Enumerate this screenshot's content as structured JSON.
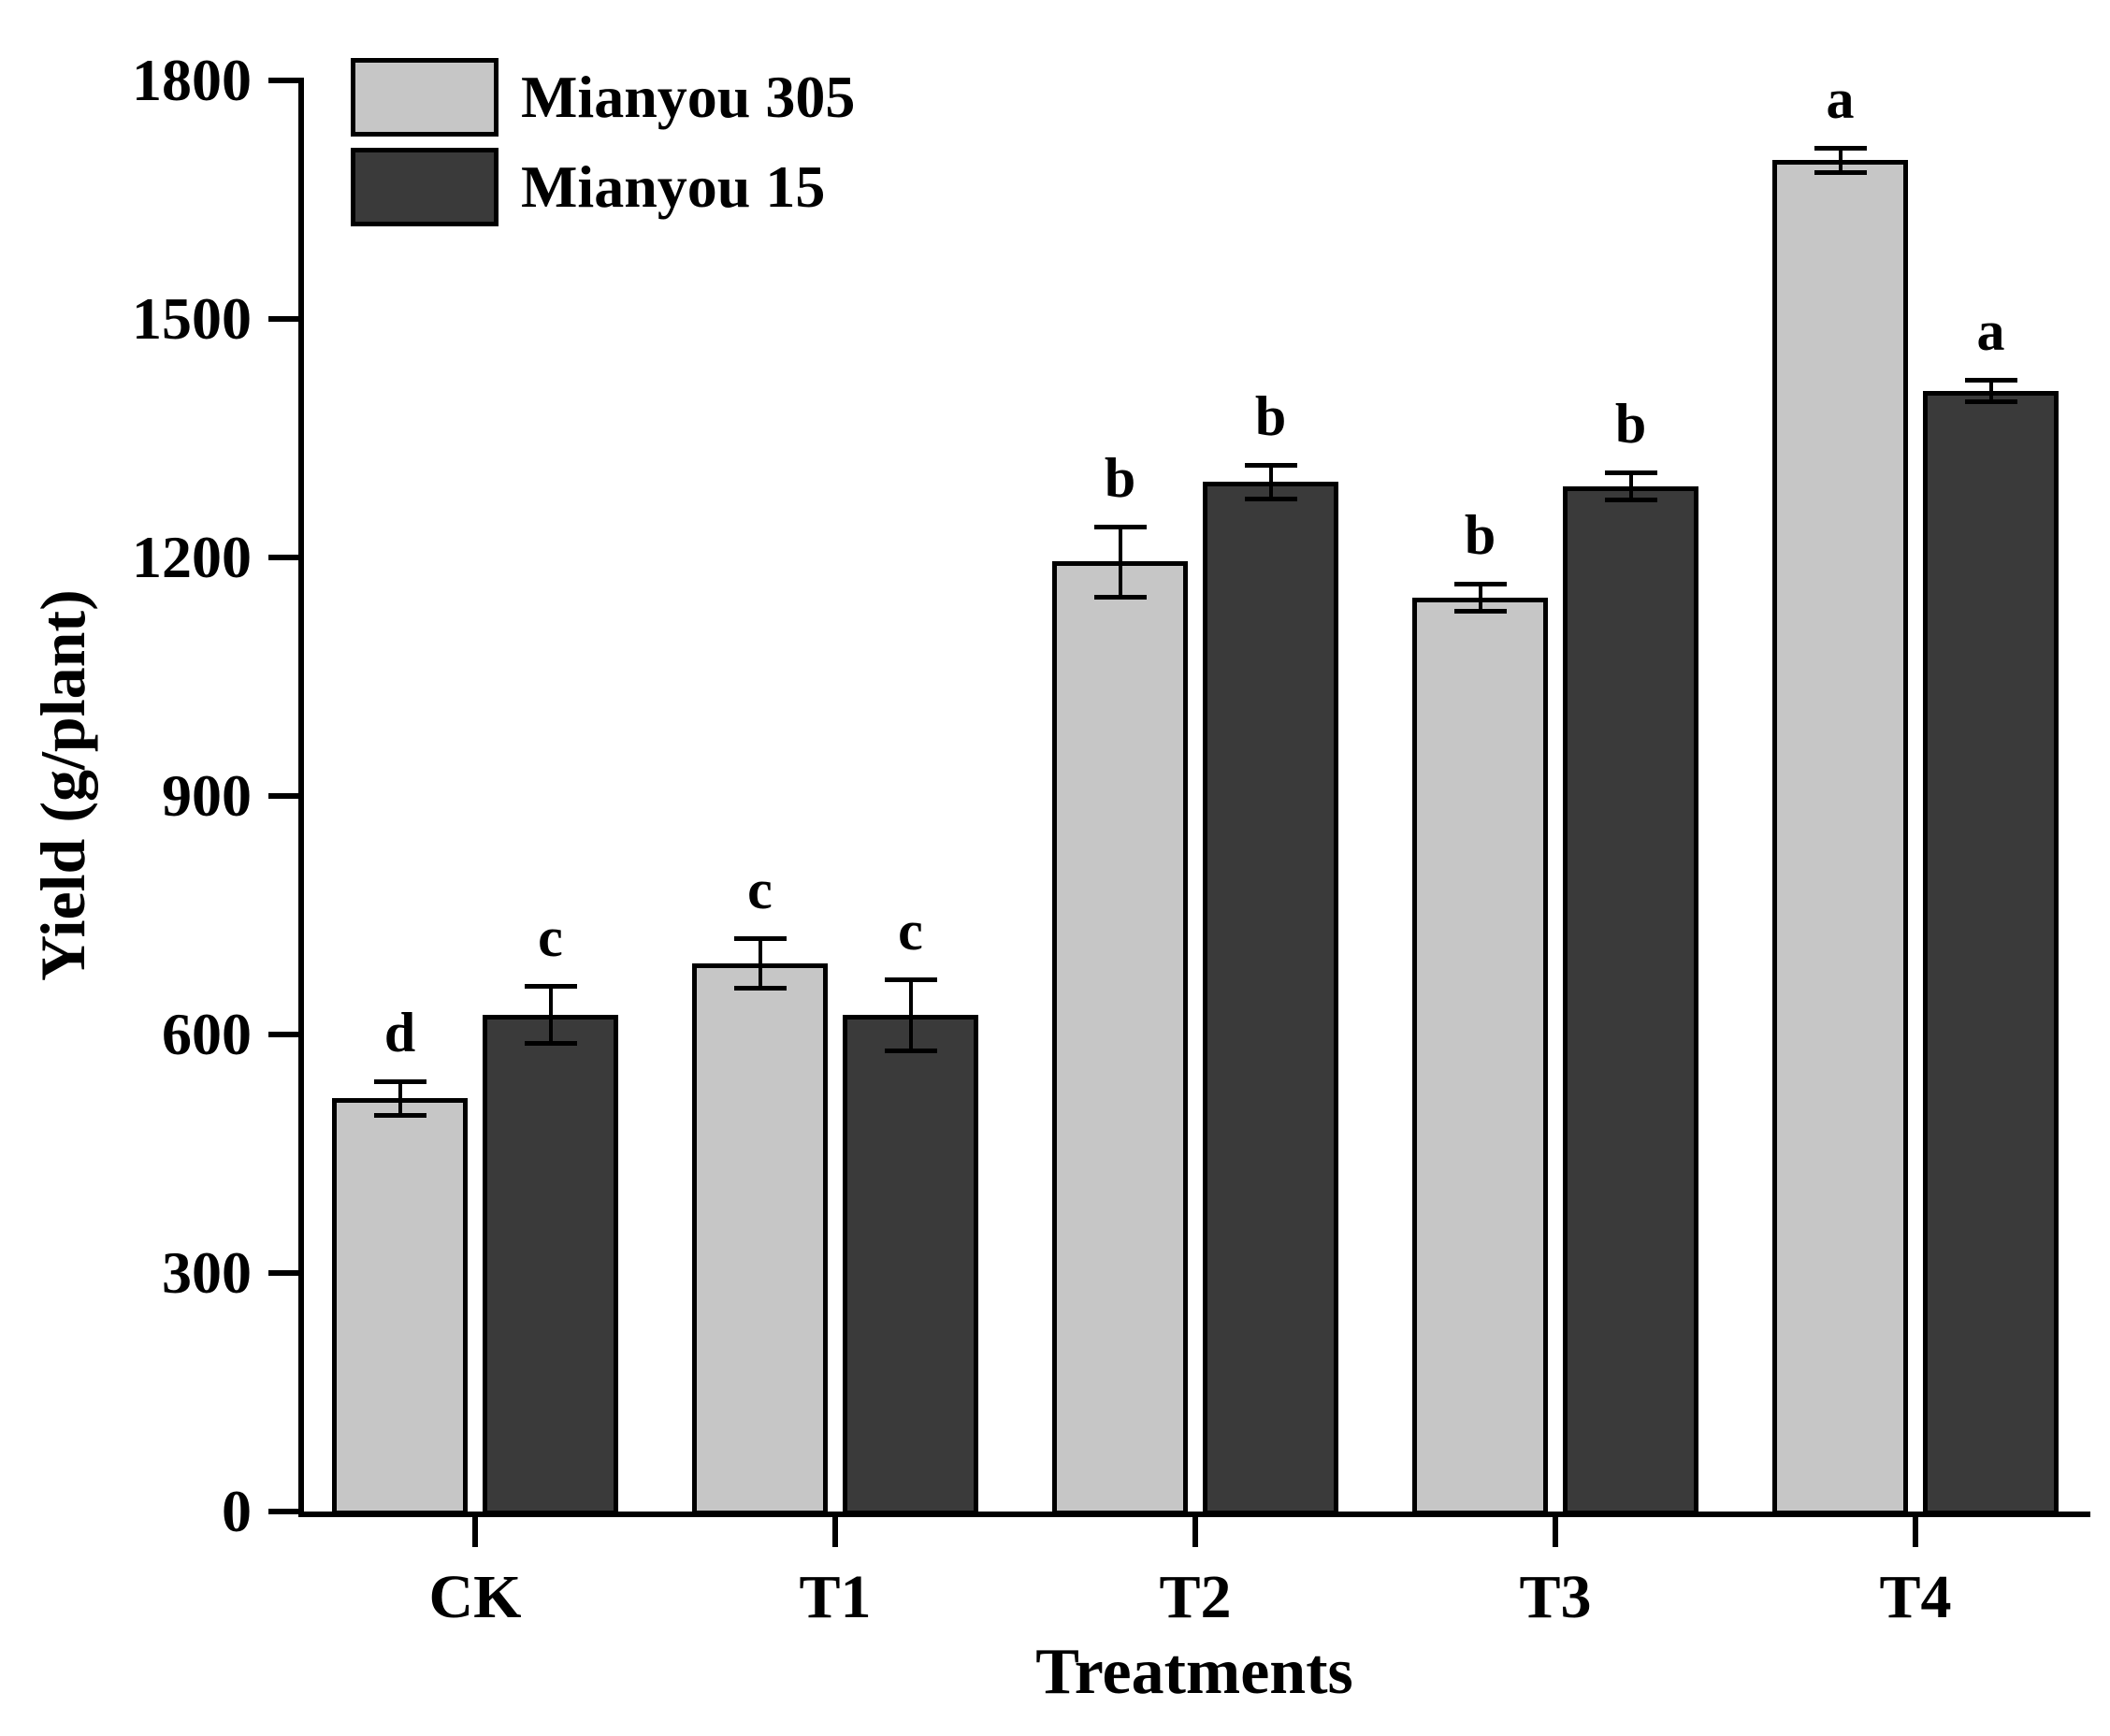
{
  "chart_data": {
    "type": "bar",
    "title": "",
    "xlabel": "Treatments",
    "ylabel": "Yield (g/plant)",
    "categories": [
      "CK",
      "T1",
      "T2",
      "T3",
      "T4"
    ],
    "series": [
      {
        "name": "Mianyou 305",
        "color": "#c6c6c6",
        "values": [
          520,
          690,
          1195,
          1150,
          1700
        ],
        "errors": [
          21,
          31,
          44,
          17,
          15
        ],
        "letters": [
          "d",
          "c",
          "b",
          "b",
          "a"
        ]
      },
      {
        "name": "Mianyou 15",
        "color": "#3a3a3a",
        "values": [
          625,
          625,
          1295,
          1290,
          1410
        ],
        "errors": [
          36,
          45,
          21,
          17,
          13
        ],
        "letters": [
          "c",
          "c",
          "b",
          "b",
          "a"
        ]
      }
    ],
    "ylim": [
      0,
      1800
    ],
    "yticks": [
      0,
      300,
      600,
      900,
      1200,
      1500,
      1800
    ],
    "grid": false,
    "legend_position": "top-left",
    "error_bars": true,
    "axis_color": "#000000"
  }
}
